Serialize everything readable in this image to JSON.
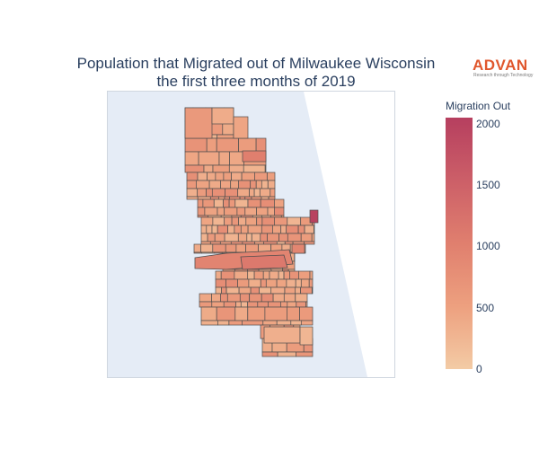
{
  "chart": {
    "title_line1": "Population that Migrated out of Milwaukee Wisconsin",
    "title_line2": "the first three months of 2019"
  },
  "logo": {
    "word": "ADVAN",
    "tagline": "Research through Technology"
  },
  "colorbar": {
    "title": "Migration Out",
    "min": 0,
    "max": 2050,
    "ticks": [
      "2000",
      "1500",
      "1000",
      "500",
      "0"
    ],
    "colors": [
      "#f3cba5",
      "#eda07f",
      "#e07f6e",
      "#cc5f68",
      "#b63f5f"
    ]
  },
  "chart_data": {
    "type": "choropleth",
    "title": "Population that Migrated out of Milwaukee Wisconsin the first three months of 2019",
    "legend_title": "Migration Out",
    "value_range": [
      0,
      2050
    ],
    "colorbar_ticks": [
      0,
      500,
      1000,
      1500,
      2000
    ]
  },
  "colors": {
    "water": "#e5ecf6",
    "land": "#ffffff",
    "tract_border": "#4e4e4e",
    "title": "#2a3f5f",
    "logo": "#e0572d"
  }
}
